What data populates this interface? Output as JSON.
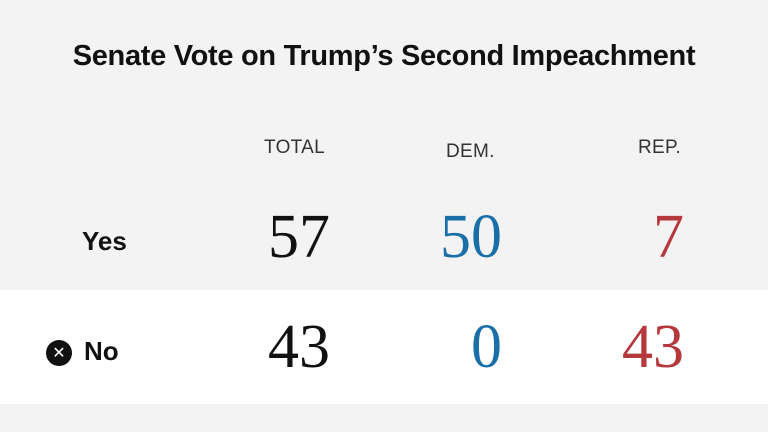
{
  "chart_data": {
    "type": "table",
    "title": "Senate Vote on Trump’s Second Impeachment",
    "columns": [
      "TOTAL",
      "DEM.",
      "REP."
    ],
    "rows": [
      {
        "label": "Yes",
        "values": [
          "57",
          "50",
          "7"
        ]
      },
      {
        "label": "No",
        "values": [
          "43",
          "0",
          "43"
        ]
      }
    ],
    "colors": {
      "total": "#111111",
      "dem": "#1a6fa8",
      "rep": "#b5383d"
    }
  },
  "icons": {
    "no_marker": "x-circle-icon"
  }
}
